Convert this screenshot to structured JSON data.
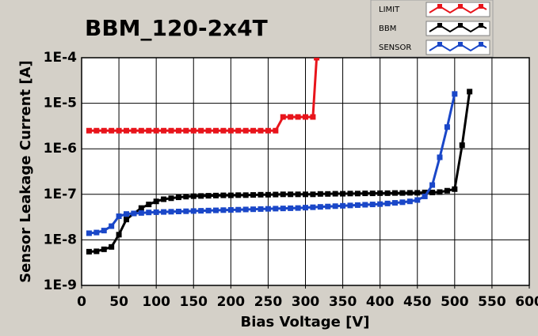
{
  "chart_data": {
    "type": "line",
    "title": "BBM_120-2x4T",
    "x_label": "Bias Voltage [V]",
    "y_label": "Sensor Leakage Current [A]",
    "log_y": true,
    "grid": true,
    "xlim": [
      0,
      600
    ],
    "xticks": [
      0,
      50,
      100,
      150,
      200,
      250,
      300,
      350,
      400,
      450,
      500,
      550,
      600
    ],
    "ylim": [
      1e-09,
      0.0001
    ],
    "yticks": [
      {
        "value": 1e-09,
        "label": "1E-9"
      },
      {
        "value": 1e-08,
        "label": "1E-8"
      },
      {
        "value": 1e-07,
        "label": "1E-7"
      },
      {
        "value": 1e-06,
        "label": "1E-6"
      },
      {
        "value": 1e-05,
        "label": "1E-5"
      },
      {
        "value": 0.0001,
        "label": "1E-4"
      }
    ],
    "series": [
      {
        "name": "LIMIT",
        "color": "#e8141b",
        "x": [
          10,
          20,
          30,
          40,
          50,
          60,
          70,
          80,
          90,
          100,
          110,
          120,
          130,
          140,
          150,
          160,
          170,
          180,
          190,
          200,
          210,
          220,
          230,
          240,
          250,
          260,
          270,
          280,
          290,
          300,
          310,
          315
        ],
        "values": [
          2.5e-06,
          2.5e-06,
          2.5e-06,
          2.5e-06,
          2.5e-06,
          2.5e-06,
          2.5e-06,
          2.5e-06,
          2.5e-06,
          2.5e-06,
          2.5e-06,
          2.5e-06,
          2.5e-06,
          2.5e-06,
          2.5e-06,
          2.5e-06,
          2.5e-06,
          2.5e-06,
          2.5e-06,
          2.5e-06,
          2.5e-06,
          2.5e-06,
          2.5e-06,
          2.5e-06,
          2.5e-06,
          2.5e-06,
          5e-06,
          5e-06,
          5e-06,
          5e-06,
          5e-06,
          0.0001
        ]
      },
      {
        "name": "BBM",
        "color": "#000000",
        "x": [
          10,
          20,
          30,
          40,
          50,
          60,
          70,
          80,
          90,
          100,
          110,
          120,
          130,
          140,
          150,
          160,
          170,
          180,
          190,
          200,
          210,
          220,
          230,
          240,
          250,
          260,
          270,
          280,
          290,
          300,
          310,
          320,
          330,
          340,
          350,
          360,
          370,
          380,
          390,
          400,
          410,
          420,
          430,
          440,
          450,
          460,
          470,
          480,
          490,
          500,
          510,
          520
        ],
        "values": [
          5.5e-09,
          5.6e-09,
          6.2e-09,
          7e-09,
          1.3e-08,
          2.8e-08,
          3.8e-08,
          5e-08,
          6e-08,
          7e-08,
          7.8e-08,
          8.2e-08,
          8.6e-08,
          8.9e-08,
          9.1e-08,
          9.2e-08,
          9.3e-08,
          9.4e-08,
          9.5e-08,
          9.5e-08,
          9.6e-08,
          9.6e-08,
          9.7e-08,
          9.8e-08,
          9.8e-08,
          9.9e-08,
          1e-07,
          1e-07,
          1e-07,
          1e-07,
          1e-07,
          1.02e-07,
          1.02e-07,
          1.03e-07,
          1.03e-07,
          1.04e-07,
          1.04e-07,
          1.05e-07,
          1.05e-07,
          1.06e-07,
          1.06e-07,
          1.07e-07,
          1.07e-07,
          1.08e-07,
          1.08e-07,
          1.1e-07,
          1.1e-07,
          1.12e-07,
          1.2e-07,
          1.3e-07,
          1.2e-06,
          1.8e-05
        ]
      },
      {
        "name": "SENSOR",
        "color": "#1a47c8",
        "x": [
          10,
          20,
          30,
          40,
          50,
          60,
          70,
          80,
          90,
          100,
          110,
          120,
          130,
          140,
          150,
          160,
          170,
          180,
          190,
          200,
          210,
          220,
          230,
          240,
          250,
          260,
          270,
          280,
          290,
          300,
          310,
          320,
          330,
          340,
          350,
          360,
          370,
          380,
          390,
          400,
          410,
          420,
          430,
          440,
          450,
          460,
          470,
          480,
          490,
          500
        ],
        "values": [
          1.4e-08,
          1.45e-08,
          1.6e-08,
          2e-08,
          3.3e-08,
          3.7e-08,
          3.8e-08,
          3.9e-08,
          4e-08,
          4.05e-08,
          4.1e-08,
          4.15e-08,
          4.2e-08,
          4.25e-08,
          4.3e-08,
          4.35e-08,
          4.4e-08,
          4.45e-08,
          4.5e-08,
          4.55e-08,
          4.6e-08,
          4.65e-08,
          4.7e-08,
          4.75e-08,
          4.8e-08,
          4.85e-08,
          4.9e-08,
          4.95e-08,
          5e-08,
          5.1e-08,
          5.2e-08,
          5.3e-08,
          5.4e-08,
          5.5e-08,
          5.6e-08,
          5.7e-08,
          5.8e-08,
          5.9e-08,
          6e-08,
          6.1e-08,
          6.3e-08,
          6.5e-08,
          6.7e-08,
          7e-08,
          7.5e-08,
          9e-08,
          1.6e-07,
          6.5e-07,
          3e-06,
          1.6e-05
        ]
      }
    ]
  }
}
